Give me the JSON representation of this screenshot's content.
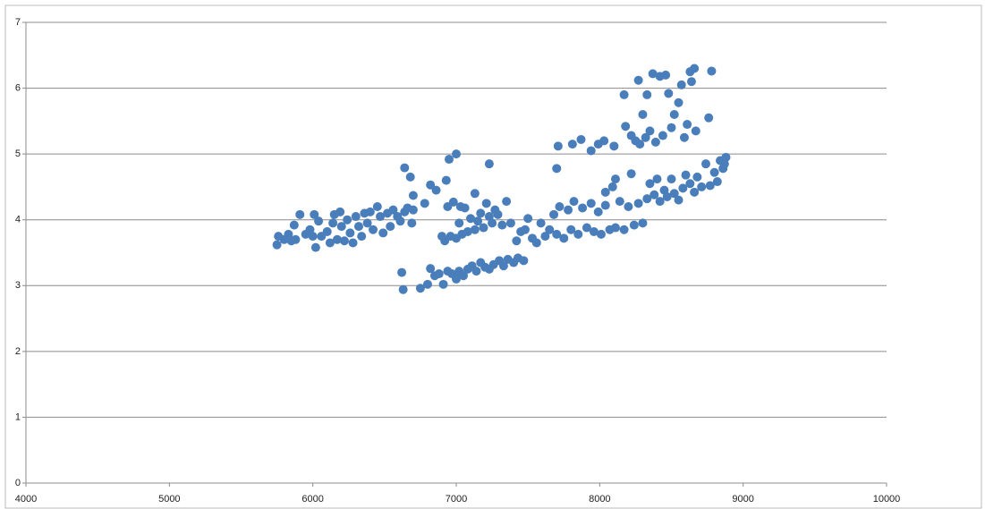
{
  "chart_data": {
    "type": "scatter",
    "color": "#4a7ebb",
    "grid": true,
    "xlim": [
      4000,
      10000
    ],
    "xticks": [
      4000,
      5000,
      6000,
      7000,
      8000,
      9000,
      10000
    ],
    "ylim": [
      0,
      7
    ],
    "yticks": [
      0,
      1,
      2,
      3,
      4,
      5,
      6,
      7
    ],
    "x": [
      5750,
      5760,
      5800,
      5830,
      5850,
      5870,
      5880,
      5910,
      5950,
      5980,
      6000,
      6010,
      6020,
      6040,
      6060,
      6100,
      6120,
      6140,
      6150,
      6170,
      6190,
      6200,
      6220,
      6240,
      6260,
      6280,
      6300,
      6320,
      6340,
      6360,
      6380,
      6400,
      6420,
      6450,
      6470,
      6490,
      6520,
      6540,
      6560,
      6590,
      6610,
      6640,
      6660,
      6690,
      6700,
      6640,
      6680,
      6700,
      6780,
      6820,
      6860,
      6900,
      6920,
      6940,
      6960,
      6980,
      7000,
      7020,
      7040,
      7060,
      7080,
      7100,
      7130,
      7150,
      7170,
      7190,
      7210,
      7230,
      7250,
      7270,
      7290,
      7320,
      7350,
      7380,
      7420,
      7450,
      6930,
      6950,
      7000,
      7230,
      7130,
      7030,
      6620,
      6630,
      6750,
      6800,
      6820,
      6850,
      6880,
      6910,
      6940,
      6970,
      7000,
      7020,
      7050,
      7080,
      7110,
      7140,
      7170,
      7200,
      7230,
      7260,
      7300,
      7330,
      7360,
      7400,
      7430,
      7470,
      7480,
      7500,
      7530,
      7560,
      7590,
      7620,
      7650,
      7680,
      7700,
      7720,
      7750,
      7780,
      7800,
      7820,
      7850,
      7880,
      7910,
      7940,
      7960,
      7990,
      8010,
      8040,
      8070,
      8090,
      8110,
      8140,
      8170,
      8200,
      8220,
      8240,
      8270,
      8300,
      8330,
      8350,
      8380,
      8400,
      8420,
      8450,
      8470,
      8500,
      8520,
      8550,
      8580,
      8600,
      8630,
      8660,
      8680,
      8710,
      8740,
      8770,
      8800,
      8820,
      8840,
      8860,
      8880,
      8870,
      7700,
      7710,
      7810,
      7870,
      7940,
      7990,
      8030,
      8100,
      8040,
      8110,
      8170,
      8180,
      8220,
      8250,
      8270,
      8280,
      8300,
      8320,
      8330,
      8350,
      8370,
      8390,
      8420,
      8440,
      8460,
      8480,
      8500,
      8520,
      8550,
      8570,
      8590,
      8610,
      8630,
      8640,
      8660,
      8670,
      8760,
      8780
    ],
    "y": [
      3.62,
      3.75,
      3.7,
      3.78,
      3.68,
      3.92,
      3.7,
      4.08,
      3.78,
      3.85,
      3.75,
      4.08,
      3.58,
      3.98,
      3.75,
      3.82,
      3.65,
      3.95,
      4.08,
      3.7,
      4.12,
      3.9,
      3.68,
      4.0,
      3.8,
      3.65,
      4.05,
      3.9,
      3.75,
      4.1,
      3.95,
      4.12,
      3.85,
      4.2,
      4.05,
      3.8,
      4.1,
      3.9,
      4.15,
      4.05,
      3.98,
      4.12,
      4.18,
      3.95,
      4.15,
      4.79,
      4.65,
      4.37,
      4.25,
      4.53,
      4.45,
      3.75,
      3.68,
      4.2,
      3.75,
      4.27,
      3.72,
      3.95,
      3.78,
      4.18,
      3.82,
      4.02,
      3.85,
      3.98,
      4.1,
      3.88,
      4.25,
      4.05,
      3.95,
      4.15,
      4.08,
      3.92,
      4.28,
      3.95,
      3.68,
      3.82,
      4.6,
      4.92,
      5.0,
      4.85,
      4.4,
      4.2,
      3.2,
      2.94,
      2.96,
      3.02,
      3.26,
      3.15,
      3.18,
      3.02,
      3.22,
      3.18,
      3.1,
      3.22,
      3.15,
      3.25,
      3.3,
      3.22,
      3.35,
      3.28,
      3.25,
      3.32,
      3.38,
      3.3,
      3.4,
      3.35,
      3.42,
      3.38,
      3.85,
      4.02,
      3.72,
      3.65,
      3.95,
      3.75,
      3.85,
      4.08,
      3.78,
      4.2,
      3.72,
      4.15,
      3.85,
      4.28,
      3.78,
      4.18,
      3.88,
      4.25,
      3.82,
      4.12,
      3.78,
      4.22,
      3.85,
      4.5,
      3.88,
      4.28,
      3.85,
      4.2,
      4.7,
      3.92,
      4.25,
      3.95,
      4.32,
      4.55,
      4.38,
      4.62,
      4.28,
      4.45,
      4.35,
      4.62,
      4.4,
      4.3,
      4.48,
      4.68,
      4.55,
      4.42,
      4.65,
      4.5,
      4.85,
      4.52,
      4.72,
      4.58,
      4.9,
      4.78,
      4.95,
      4.85,
      4.78,
      5.12,
      5.15,
      5.22,
      5.05,
      5.15,
      5.2,
      5.12,
      4.42,
      4.62,
      5.9,
      5.42,
      5.28,
      5.2,
      6.12,
      5.15,
      5.6,
      5.25,
      5.9,
      5.35,
      6.22,
      5.18,
      6.18,
      5.28,
      6.2,
      5.92,
      5.4,
      5.6,
      5.78,
      6.05,
      5.25,
      5.45,
      6.25,
      6.1,
      6.3,
      5.35,
      5.55,
      6.26
    ]
  }
}
